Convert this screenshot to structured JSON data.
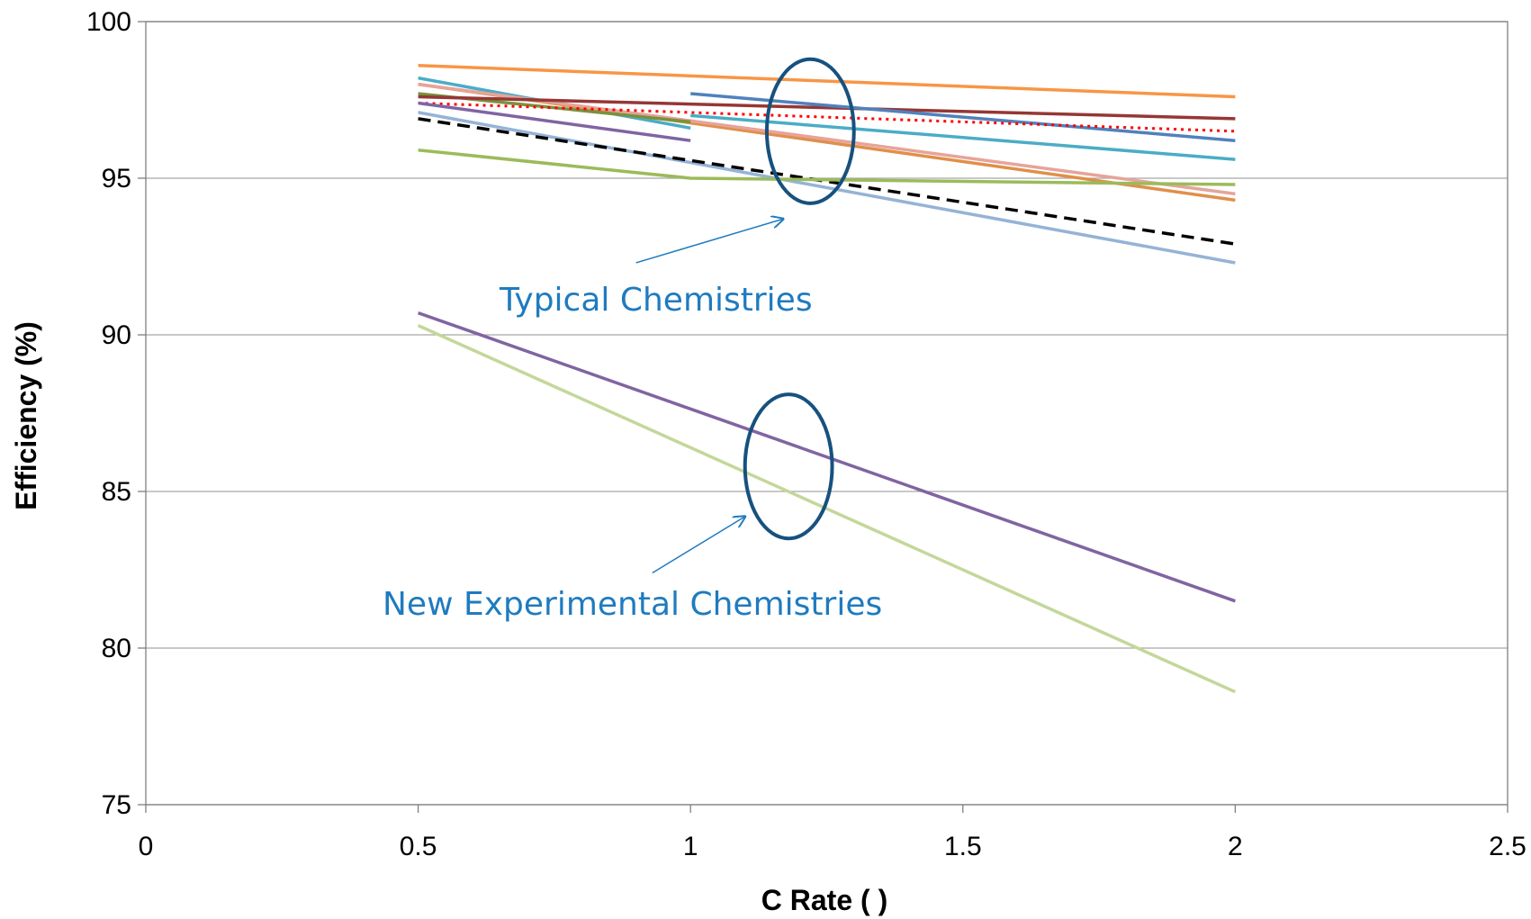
{
  "chart_data": {
    "type": "line",
    "title": "",
    "xlabel": "C Rate ( )",
    "ylabel": "Efficiency (%)",
    "xlim": [
      0,
      2.5
    ],
    "ylim": [
      75,
      100
    ],
    "x_ticks": [
      "0",
      "0.5",
      "1",
      "1.5",
      "2",
      "2.5"
    ],
    "y_ticks": [
      "75",
      "80",
      "85",
      "90",
      "95",
      "100"
    ],
    "grid": "horizontal",
    "legend": "none",
    "series": [
      {
        "color": "#f79646",
        "style": "solid",
        "x": [
          0.5,
          2
        ],
        "y": [
          98.6,
          97.6
        ]
      },
      {
        "color": "#4bacc6",
        "style": "solid",
        "x": [
          0.5,
          1
        ],
        "y": [
          98.2,
          96.6
        ]
      },
      {
        "color": "#e08f4a",
        "style": "solid",
        "x": [
          0.5,
          2
        ],
        "y": [
          98.0,
          94.3
        ]
      },
      {
        "color": "#e6a49a",
        "style": "solid",
        "x": [
          0.5,
          2
        ],
        "y": [
          98.0,
          94.5
        ]
      },
      {
        "color": "#77933c",
        "style": "solid",
        "x": [
          0.5,
          1
        ],
        "y": [
          97.7,
          96.8
        ]
      },
      {
        "color": "#953735",
        "style": "solid",
        "x": [
          0.5,
          2
        ],
        "y": [
          97.6,
          96.9
        ]
      },
      {
        "color": "#4f81bd",
        "style": "solid",
        "x": [
          1,
          2
        ],
        "y": [
          97.7,
          96.2
        ]
      },
      {
        "color": "#4bacc6",
        "style": "solid",
        "x": [
          1,
          2
        ],
        "y": [
          97.0,
          95.6
        ]
      },
      {
        "color": "#ff0000",
        "style": "dotted",
        "x": [
          0.5,
          2
        ],
        "y": [
          97.4,
          96.5
        ]
      },
      {
        "color": "#8064a2",
        "style": "solid",
        "x": [
          0.5,
          1
        ],
        "y": [
          97.4,
          96.2
        ]
      },
      {
        "color": "#95b3d7",
        "style": "solid",
        "x": [
          0.5,
          2
        ],
        "y": [
          97.1,
          92.3
        ]
      },
      {
        "color": "#000000",
        "style": "dashed",
        "x": [
          0.5,
          2
        ],
        "y": [
          96.9,
          92.9
        ]
      },
      {
        "color": "#9bbb59",
        "style": "solid",
        "x": [
          0.5,
          1,
          2
        ],
        "y": [
          95.9,
          95.0,
          94.8
        ]
      },
      {
        "color": "#8064a2",
        "style": "solid",
        "x": [
          0.5,
          2
        ],
        "y": [
          90.7,
          81.5
        ]
      },
      {
        "color": "#c4d79b",
        "style": "solid",
        "x": [
          0.5,
          2
        ],
        "y": [
          90.3,
          78.6
        ]
      }
    ],
    "annotations": [
      {
        "text": "Typical Chemistries",
        "ellipse": {
          "cx": 1.22,
          "cy": 96.5,
          "rx": 0.08,
          "ry": 2.3
        },
        "arrow_from": [
          0.9,
          92.3
        ],
        "arrow_to": [
          1.17,
          93.7
        ]
      },
      {
        "text": "New Experimental Chemistries",
        "ellipse": {
          "cx": 1.18,
          "cy": 85.8,
          "rx": 0.08,
          "ry": 2.3
        },
        "arrow_from": [
          0.93,
          82.4
        ],
        "arrow_to": [
          1.1,
          84.2
        ]
      }
    ],
    "colors": {
      "axis": "#7f7f7f",
      "grid": "#a6a6a6",
      "annotation_text": "#1f7bbf",
      "ellipse": "#17517e",
      "arrow": "#1f7bbf"
    }
  }
}
